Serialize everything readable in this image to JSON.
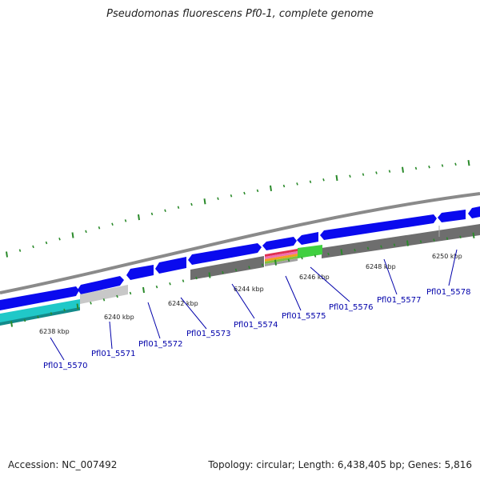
{
  "title": "Pseudomonas fluorescens Pf0-1, complete genome",
  "accession_text": "Accession: NC_007492",
  "summary_text": "Topology: circular; Length: 6,438,405 bp; Genes: 5,816",
  "colors": {
    "forward_gene": "#0a0aee",
    "reverse_gene": "#1010e8",
    "backbone": "#8a8a8a",
    "tick": "#2a8a2a",
    "label_link": "#0000aa",
    "cyan_feature": "#20c8c8",
    "light_gray_feature": "#c8c8c8",
    "dark_gray_feature": "#6e6e6e",
    "green_feature": "#40d040"
  },
  "kbp_labels": [
    "6238 kbp",
    "6240 kbp",
    "6242 kbp",
    "6244 kbp",
    "6246 kbp",
    "6248 kbp",
    "6250 kbp"
  ],
  "gene_labels": [
    "Pfl01_5570",
    "Pfl01_5571",
    "Pfl01_5572",
    "Pfl01_5573",
    "Pfl01_5574",
    "Pfl01_5575",
    "Pfl01_5576",
    "Pfl01_5577",
    "Pfl01_5578"
  ]
}
